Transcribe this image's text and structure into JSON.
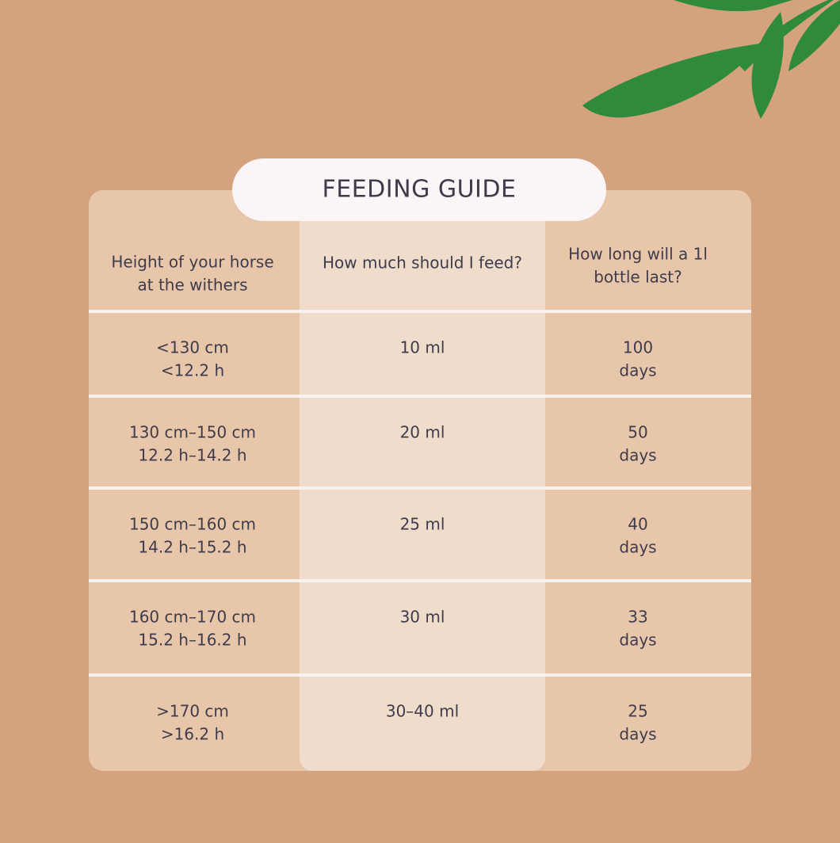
{
  "title": "FEEDING GUIDE",
  "table": {
    "header": [
      [
        "Height of your horse",
        "at the withers"
      ],
      [
        "How much should I feed?"
      ],
      [
        "How long will a 1l",
        "bottle last?"
      ]
    ],
    "rows": [
      [
        [
          "<130 cm",
          "<12.2 h"
        ],
        [
          "10 ml"
        ],
        [
          "100",
          "days"
        ]
      ],
      [
        [
          "130 cm–150 cm",
          "12.2 h–14.2 h"
        ],
        [
          "20 ml"
        ],
        [
          "50",
          "days"
        ]
      ],
      [
        [
          "150 cm–160 cm",
          "14.2 h–15.2 h"
        ],
        [
          "25 ml"
        ],
        [
          "40",
          "days"
        ]
      ],
      [
        [
          "160 cm–170 cm",
          "15.2 h–16.2 h"
        ],
        [
          "30 ml"
        ],
        [
          "33",
          "days"
        ]
      ],
      [
        [
          ">170 cm",
          ">16.2 h"
        ],
        [
          "30–40 ml"
        ],
        [
          "25",
          "days"
        ]
      ]
    ]
  }
}
